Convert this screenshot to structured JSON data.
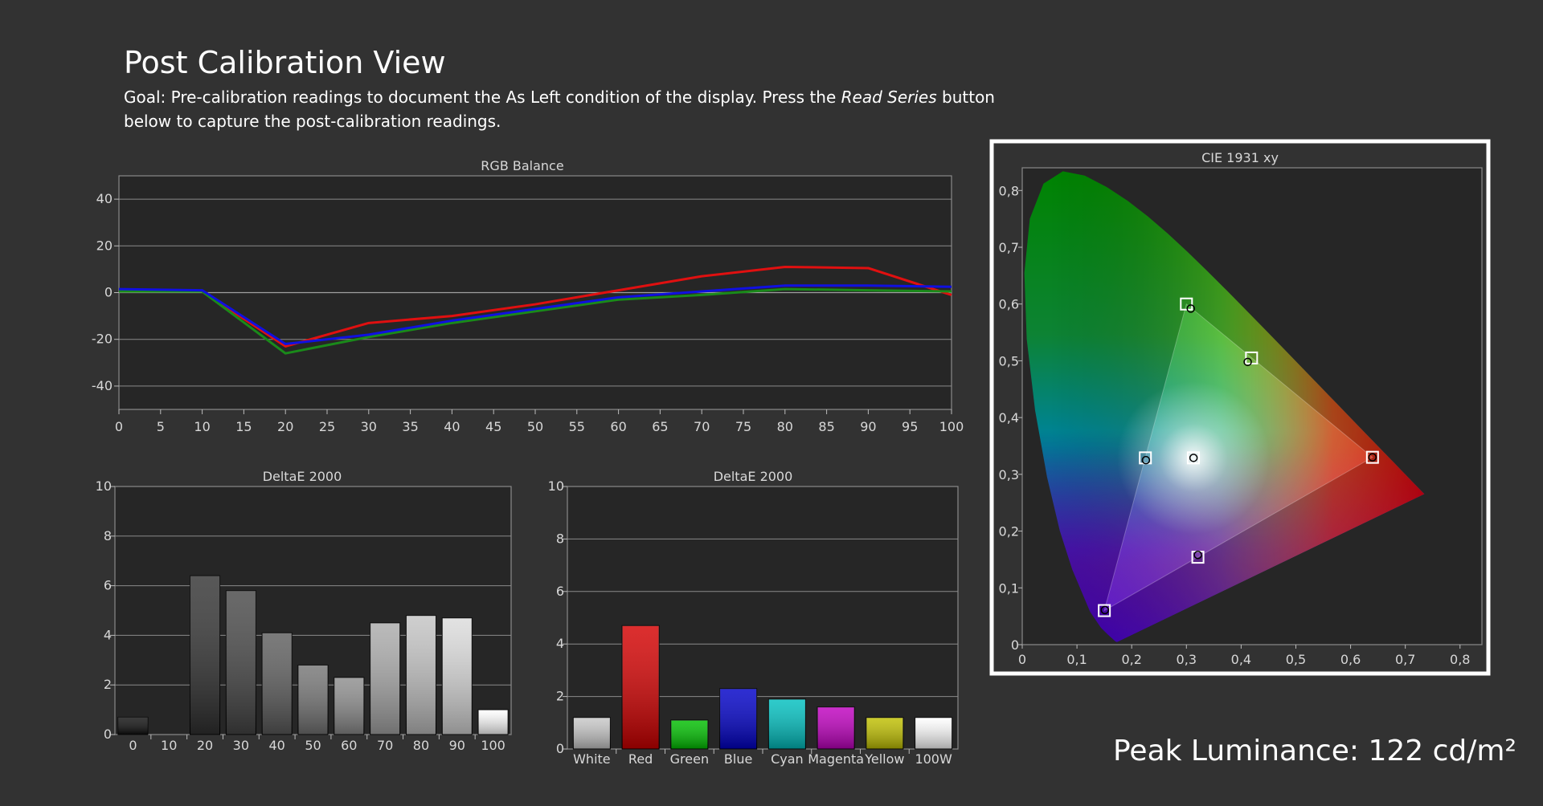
{
  "page": {
    "title": "Post Calibration View",
    "goal_prefix": "Goal: Pre-calibration readings to document the As Left condition of the display. Press the ",
    "goal_emphasis": "Read Series",
    "goal_suffix": " button below to capture the post-calibration readings.",
    "peak_luminance": "Peak Luminance: 122 cd/m²"
  },
  "colors": {
    "background": "#323232",
    "red": "#e01010",
    "green": "#1a8a1a",
    "blue": "#1010e0"
  },
  "chart_data": [
    {
      "id": "rgb",
      "type": "line",
      "title": "RGB Balance",
      "x": [
        0,
        10,
        20,
        30,
        40,
        50,
        60,
        70,
        80,
        90,
        100
      ],
      "xticks": [
        "0",
        "5",
        "10",
        "15",
        "20",
        "25",
        "30",
        "35",
        "40",
        "45",
        "50",
        "55",
        "60",
        "65",
        "70",
        "75",
        "80",
        "85",
        "90",
        "95",
        "100"
      ],
      "xlim": [
        0,
        100
      ],
      "ylim": [
        -50,
        50
      ],
      "yticks": [
        -40,
        -20,
        0,
        20,
        40
      ],
      "grid": true,
      "series": [
        {
          "color": "#e01010",
          "values": [
            1,
            0.5,
            -23,
            -13,
            -10,
            -5,
            1,
            7,
            11,
            10.5,
            -1
          ]
        },
        {
          "color": "#1a8a1a",
          "values": [
            0.5,
            0.5,
            -26,
            -19,
            -13,
            -8,
            -3,
            -1,
            1.5,
            1,
            0.5
          ]
        },
        {
          "color": "#1010e0",
          "values": [
            1.5,
            1,
            -22,
            -18,
            -12,
            -7,
            -2,
            0.5,
            3,
            3,
            2.5
          ]
        }
      ]
    },
    {
      "id": "de_gray",
      "type": "bar",
      "title": "DeltaE 2000",
      "categories": [
        "0",
        "10",
        "20",
        "30",
        "40",
        "50",
        "60",
        "70",
        "80",
        "90",
        "100"
      ],
      "values": [
        0.7,
        0,
        6.4,
        5.8,
        4.1,
        2.8,
        2.3,
        4.5,
        4.8,
        4.7,
        1.0
      ],
      "bar_colors": [
        "#101010",
        "#1a1a1a",
        "#333333",
        "#484848",
        "#5e5e5e",
        "#767676",
        "#8e8e8e",
        "#ababab",
        "#c4c4c4",
        "#dcdcdc",
        "#ffffff"
      ],
      "ylim": [
        0,
        10
      ],
      "yticks": [
        0,
        2,
        4,
        6,
        8,
        10
      ],
      "grid": true
    },
    {
      "id": "de_color",
      "type": "bar",
      "title": "DeltaE 2000",
      "categories": [
        "White",
        "Red",
        "Green",
        "Blue",
        "Cyan",
        "Magenta",
        "Yellow",
        "100W"
      ],
      "values": [
        1.2,
        4.7,
        1.1,
        2.3,
        1.9,
        1.6,
        1.2,
        1.2
      ],
      "bar_colors": [
        "#c8c8c8",
        "#d40000",
        "#00c000",
        "#0000c8",
        "#00c0c0",
        "#c000c0",
        "#c0c000",
        "#ffffff"
      ],
      "ylim": [
        0,
        10
      ],
      "yticks": [
        0,
        2,
        4,
        6,
        8,
        10
      ],
      "grid": true
    },
    {
      "id": "cie",
      "type": "scatter",
      "title": "CIE 1931 xy",
      "xlim": [
        0,
        0.84
      ],
      "ylim": [
        0,
        0.84
      ],
      "xticks": [
        "0",
        "0,1",
        "0,2",
        "0,3",
        "0,4",
        "0,5",
        "0,6",
        "0,7",
        "0,8"
      ],
      "yticks": [
        "0",
        "0,1",
        "0,2",
        "0,3",
        "0,4",
        "0,5",
        "0,6",
        "0,7",
        "0,8"
      ],
      "gamut_triangle": [
        [
          0.64,
          0.33
        ],
        [
          0.3,
          0.6
        ],
        [
          0.15,
          0.06
        ]
      ],
      "targets": [
        {
          "x": 0.3127,
          "y": 0.329
        },
        {
          "x": 0.64,
          "y": 0.33
        },
        {
          "x": 0.3,
          "y": 0.6
        },
        {
          "x": 0.15,
          "y": 0.06
        },
        {
          "x": 0.225,
          "y": 0.329
        },
        {
          "x": 0.321,
          "y": 0.154
        },
        {
          "x": 0.419,
          "y": 0.505
        }
      ],
      "measured": [
        {
          "x": 0.313,
          "y": 0.329
        },
        {
          "x": 0.64,
          "y": 0.33
        },
        {
          "x": 0.308,
          "y": 0.592
        },
        {
          "x": 0.151,
          "y": 0.061
        },
        {
          "x": 0.226,
          "y": 0.325
        },
        {
          "x": 0.321,
          "y": 0.158
        },
        {
          "x": 0.412,
          "y": 0.498
        }
      ]
    }
  ]
}
